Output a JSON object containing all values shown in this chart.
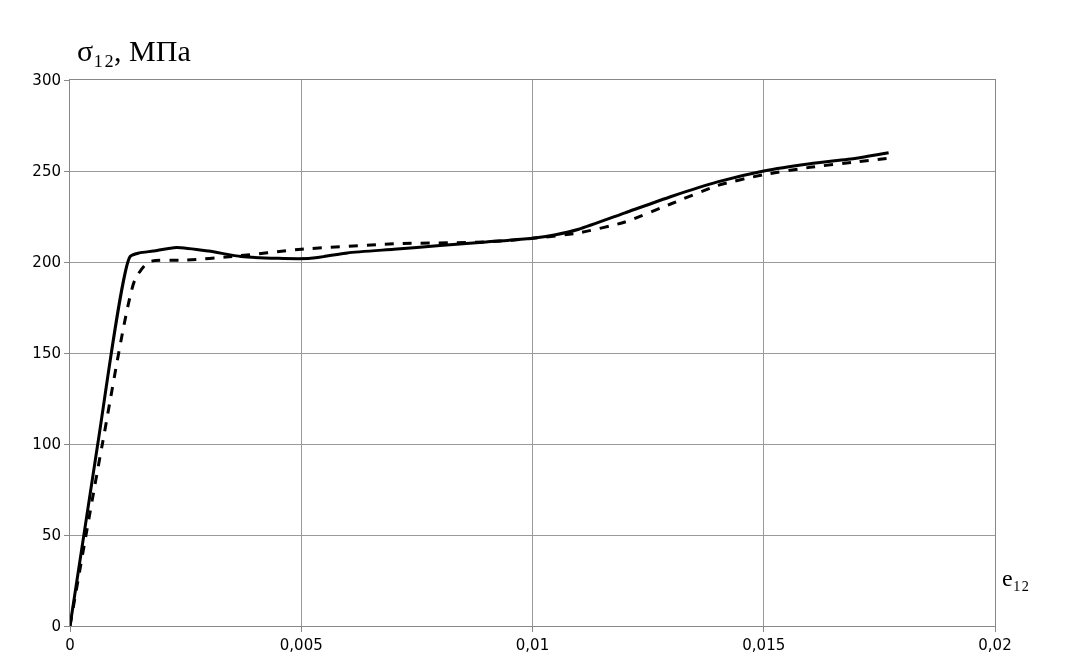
{
  "chart_data": {
    "type": "line",
    "ylabel": "σ₁₂, МПа",
    "xlabel": "e₁₂",
    "xlim": [
      0,
      0.02
    ],
    "xticks": [
      {
        "value": 0,
        "label": "0"
      },
      {
        "value": 0.005,
        "label": "0,005"
      },
      {
        "value": 0.01,
        "label": "0,01"
      },
      {
        "value": 0.015,
        "label": "0,015"
      },
      {
        "value": 0.02,
        "label": "0,02"
      }
    ],
    "ylim": [
      0,
      300
    ],
    "yticks": [
      0,
      50,
      100,
      150,
      200,
      250,
      300
    ],
    "grid": true,
    "marker": "none",
    "series": [
      {
        "color": "#000000",
        "line_style": "solid",
        "x": [
          0,
          0.0006,
          0.0013,
          0.0015,
          0.0018,
          0.0023,
          0.003,
          0.0037,
          0.0045,
          0.0052,
          0.006,
          0.007,
          0.008,
          0.009,
          0.01,
          0.0105,
          0.011,
          0.012,
          0.013,
          0.014,
          0.015,
          0.016,
          0.017,
          0.0177
        ],
        "values": [
          0,
          100,
          203,
          205,
          206,
          208,
          206,
          203,
          202,
          202,
          205,
          207,
          209,
          211,
          213,
          215,
          218,
          227,
          236,
          244,
          250,
          254,
          257,
          260
        ]
      },
      {
        "color": "#000000",
        "line_style": "dashed",
        "x": [
          0,
          0.0007,
          0.0014,
          0.0017,
          0.0025,
          0.0035,
          0.005,
          0.007,
          0.009,
          0.01,
          0.011,
          0.012,
          0.013,
          0.014,
          0.015,
          0.016,
          0.017,
          0.0177
        ],
        "values": [
          0,
          100,
          190,
          200,
          201,
          203,
          207,
          210,
          211,
          213,
          216,
          222,
          232,
          242,
          248,
          252,
          255,
          257
        ]
      }
    ]
  }
}
